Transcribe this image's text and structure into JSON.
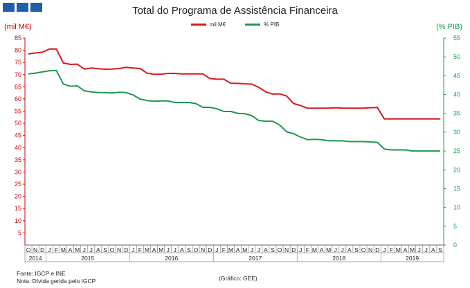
{
  "header": {
    "title": "Total do Programa de Assistência Financeira"
  },
  "chart_data": {
    "type": "line",
    "title": "Total do Programa de Assistência Financeira",
    "ylabel": "(mil M€)",
    "ylabel_right": "(% PIB)",
    "ylim": [
      0,
      85
    ],
    "ylim_right": [
      0,
      55
    ],
    "yticks": [
      5,
      10,
      15,
      20,
      25,
      30,
      35,
      40,
      45,
      50,
      55,
      60,
      65,
      70,
      75,
      80,
      85
    ],
    "yticks_right": [
      0,
      5,
      10,
      15,
      20,
      25,
      30,
      35,
      40,
      45,
      50,
      55
    ],
    "grid": false,
    "legend_position": "top-center",
    "month_letters": [
      "O",
      "N",
      "D",
      "J",
      "F",
      "M",
      "A",
      "M",
      "J",
      "J",
      "A",
      "S",
      "O",
      "N",
      "D",
      "J",
      "F",
      "M",
      "A",
      "M",
      "J",
      "J",
      "A",
      "S",
      "O",
      "N",
      "D",
      "J",
      "F",
      "M",
      "A",
      "M",
      "J",
      "J",
      "A",
      "S",
      "O",
      "N",
      "D",
      "J",
      "F",
      "M",
      "A",
      "M",
      "J",
      "J",
      "A",
      "S",
      "O",
      "N",
      "D",
      "J",
      "F",
      "M",
      "A",
      "M",
      "J",
      "J",
      "A",
      "S"
    ],
    "years": [
      {
        "label": "2014",
        "start": 0,
        "end": 3
      },
      {
        "label": "2015",
        "start": 3,
        "end": 15
      },
      {
        "label": "2016",
        "start": 15,
        "end": 27
      },
      {
        "label": "2017",
        "start": 27,
        "end": 39
      },
      {
        "label": "2018",
        "start": 39,
        "end": 51
      },
      {
        "label": "2019",
        "start": 51,
        "end": 60
      }
    ],
    "colors": {
      "left_axis": "#cc0000",
      "right_axis": "#1a9a4a"
    },
    "series": [
      {
        "name": "mil M€",
        "axis": "left",
        "color": "#d7191c",
        "values": [
          78.5,
          78.9,
          79.2,
          80.5,
          80.5,
          74.8,
          74.2,
          74.3,
          72.3,
          72.7,
          72.4,
          72.2,
          72.3,
          72.5,
          73.0,
          72.7,
          72.5,
          70.6,
          70.1,
          70.2,
          70.5,
          70.5,
          70.3,
          70.3,
          70.3,
          70.3,
          68.4,
          68.1,
          68.1,
          66.4,
          66.4,
          66.2,
          66.1,
          64.8,
          62.9,
          62.0,
          62.1,
          61.2,
          58.1,
          57.3,
          56.2,
          56.2,
          56.2,
          56.2,
          56.4,
          56.2,
          56.2,
          56.2,
          56.2,
          56.4,
          56.5,
          51.8,
          51.8,
          51.8,
          51.8,
          51.8,
          51.8,
          51.8,
          51.8,
          51.8
        ]
      },
      {
        "name": "% PIB",
        "axis": "right",
        "color": "#1a9a4a",
        "values": [
          45.5,
          45.7,
          46.0,
          46.3,
          46.4,
          42.8,
          42.2,
          42.3,
          41.0,
          40.7,
          40.5,
          40.5,
          40.4,
          40.6,
          40.5,
          39.9,
          38.8,
          38.4,
          38.2,
          38.3,
          38.3,
          37.9,
          37.9,
          37.9,
          37.6,
          36.6,
          36.6,
          36.2,
          35.5,
          35.5,
          35.0,
          34.9,
          34.4,
          33.1,
          32.9,
          32.9,
          31.9,
          30.1,
          29.6,
          28.7,
          28.0,
          28.1,
          28.0,
          27.7,
          27.7,
          27.7,
          27.5,
          27.5,
          27.5,
          27.4,
          27.3,
          25.5,
          25.3,
          25.3,
          25.3,
          25.0,
          25.0,
          25.0,
          25.0,
          25.0
        ]
      }
    ]
  },
  "footer": {
    "source": "Fonte: IGCP e INE",
    "note": "Nota: Dívida gerida pelo IGCP",
    "credit": "(Gráfico: GEE)"
  }
}
